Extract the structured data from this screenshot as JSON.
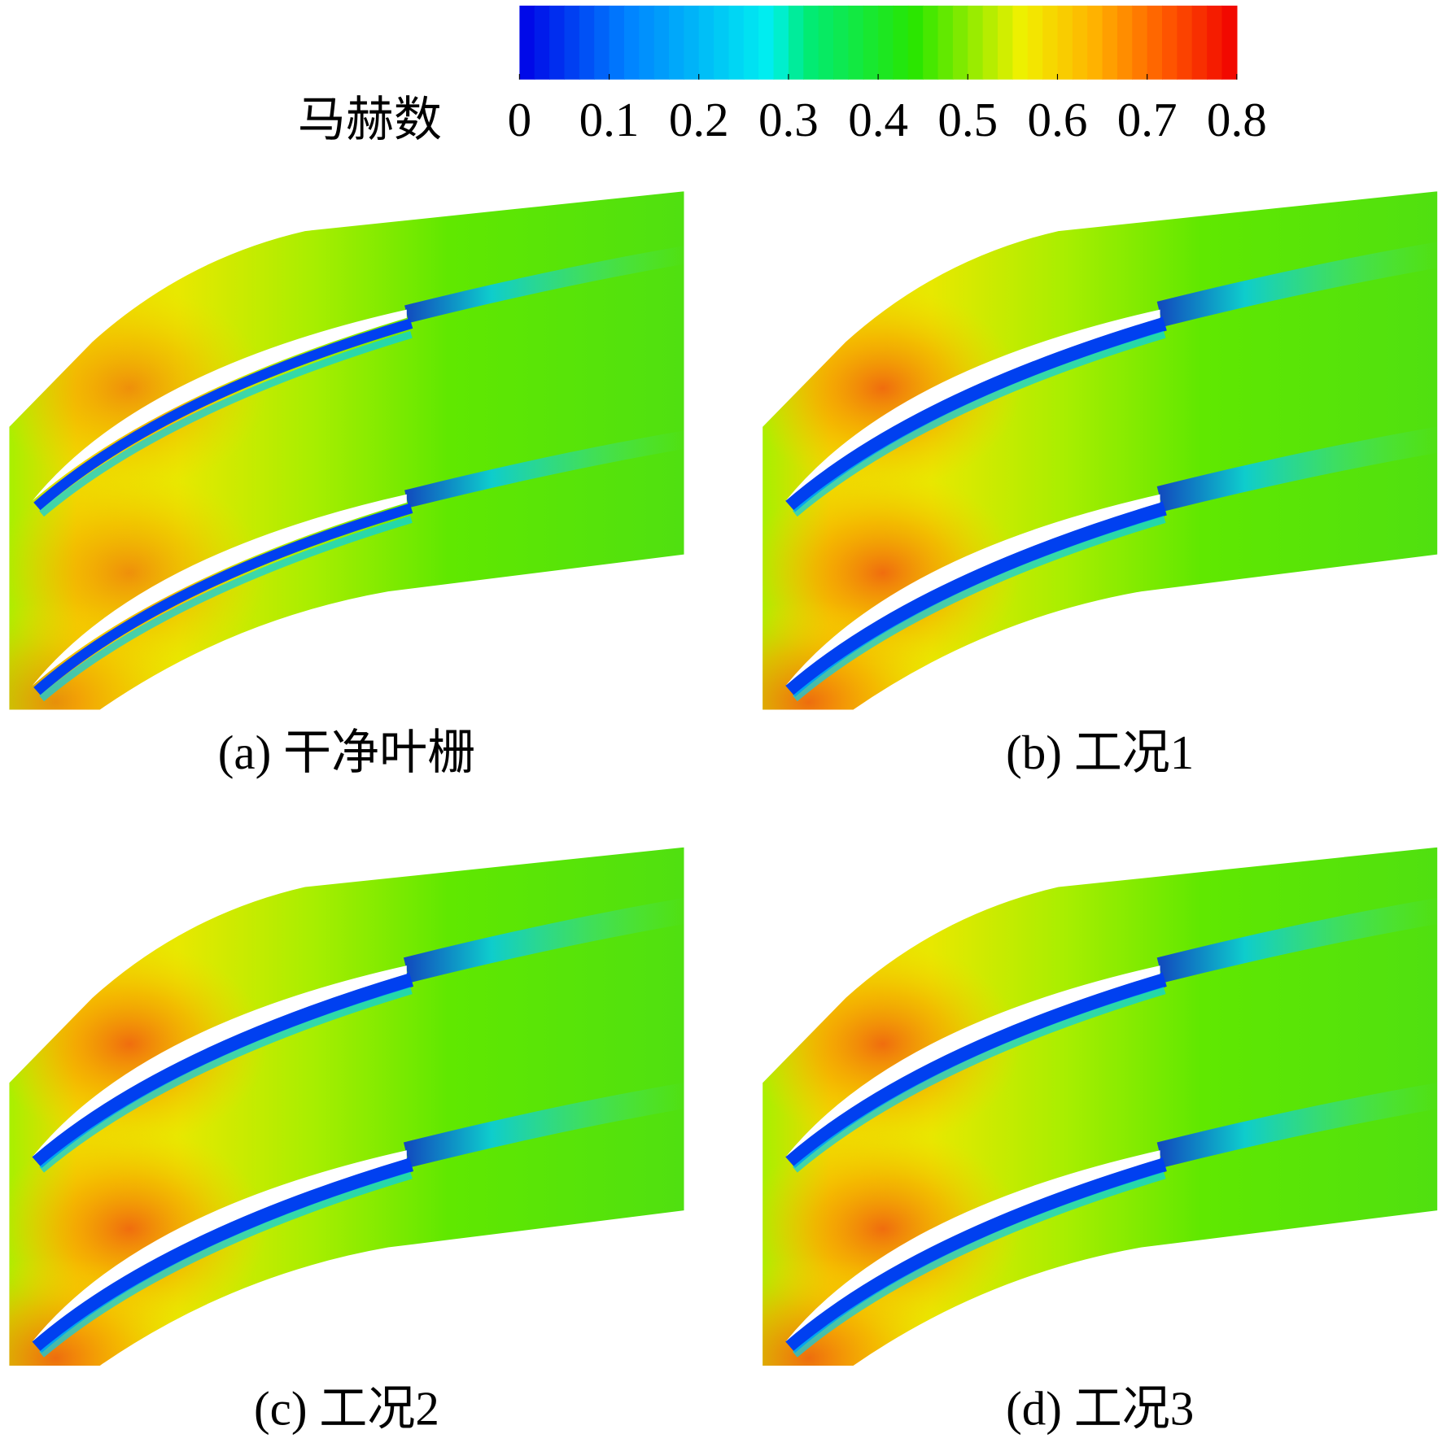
{
  "colorbar": {
    "label": "马赫数",
    "range": [
      0,
      0.8
    ],
    "ticks": [
      0,
      0.1,
      0.2,
      0.3,
      0.4,
      0.5,
      0.6,
      0.7,
      0.8
    ]
  },
  "panels": [
    {
      "caption": "(a) 干净叶栅"
    },
    {
      "caption": "(b) 工况1"
    },
    {
      "caption": "(c) 工况2"
    },
    {
      "caption": "(d) 工况3"
    }
  ]
}
